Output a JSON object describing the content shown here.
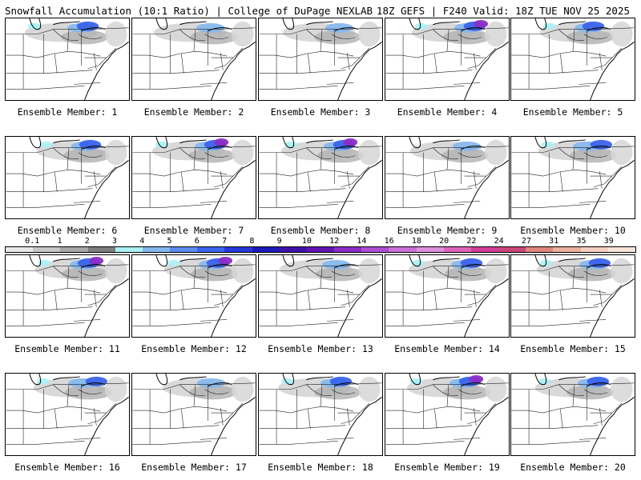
{
  "header": {
    "left_title": "Snowfall Accumulation (10:1 Ratio) | College of DuPage NEXLAB",
    "right_title": "18Z GEFS | F240 Valid: 18Z TUE NOV 25 2025"
  },
  "members": [
    {
      "label": "Ensemble Member: 1",
      "intensity": 2
    },
    {
      "label": "Ensemble Member: 2",
      "intensity": 1
    },
    {
      "label": "Ensemble Member: 3",
      "intensity": 1
    },
    {
      "label": "Ensemble Member: 4",
      "intensity": 3
    },
    {
      "label": "Ensemble Member: 5",
      "intensity": 2
    },
    {
      "label": "Ensemble Member: 6",
      "intensity": 2
    },
    {
      "label": "Ensemble Member: 7",
      "intensity": 3
    },
    {
      "label": "Ensemble Member: 8",
      "intensity": 3
    },
    {
      "label": "Ensemble Member: 9",
      "intensity": 1
    },
    {
      "label": "Ensemble Member: 10",
      "intensity": 2
    },
    {
      "label": "Ensemble Member: 11",
      "intensity": 3
    },
    {
      "label": "Ensemble Member: 12",
      "intensity": 3
    },
    {
      "label": "Ensemble Member: 13",
      "intensity": 1
    },
    {
      "label": "Ensemble Member: 14",
      "intensity": 2
    },
    {
      "label": "Ensemble Member: 15",
      "intensity": 2
    },
    {
      "label": "Ensemble Member: 16",
      "intensity": 2
    },
    {
      "label": "Ensemble Member: 17",
      "intensity": 1
    },
    {
      "label": "Ensemble Member: 18",
      "intensity": 2
    },
    {
      "label": "Ensemble Member: 19",
      "intensity": 3
    },
    {
      "label": "Ensemble Member: 20",
      "intensity": 2
    }
  ],
  "color_scale": {
    "labels": [
      "0.1",
      "1",
      "2",
      "3",
      "4",
      "5",
      "6",
      "7",
      "8",
      "9",
      "10",
      "12",
      "14",
      "16",
      "18",
      "20",
      "22",
      "24",
      "27",
      "31",
      "35",
      "39"
    ],
    "colors": [
      "#e8e8e8",
      "#c6c6c6",
      "#a6a6a6",
      "#7e7e7e",
      "#a9f1f5",
      "#83b7ee",
      "#5d8cf0",
      "#3b63ec",
      "#2838d8",
      "#1c1ab8",
      "#3e12a8",
      "#6214b2",
      "#8b2cc6",
      "#b04cd4",
      "#cc6fd8",
      "#dd8fdc",
      "#de63b8",
      "#d33d96",
      "#c9467a",
      "#e0857a",
      "#eab09c",
      "#f2cfbf",
      "#f7e4d8"
    ]
  }
}
